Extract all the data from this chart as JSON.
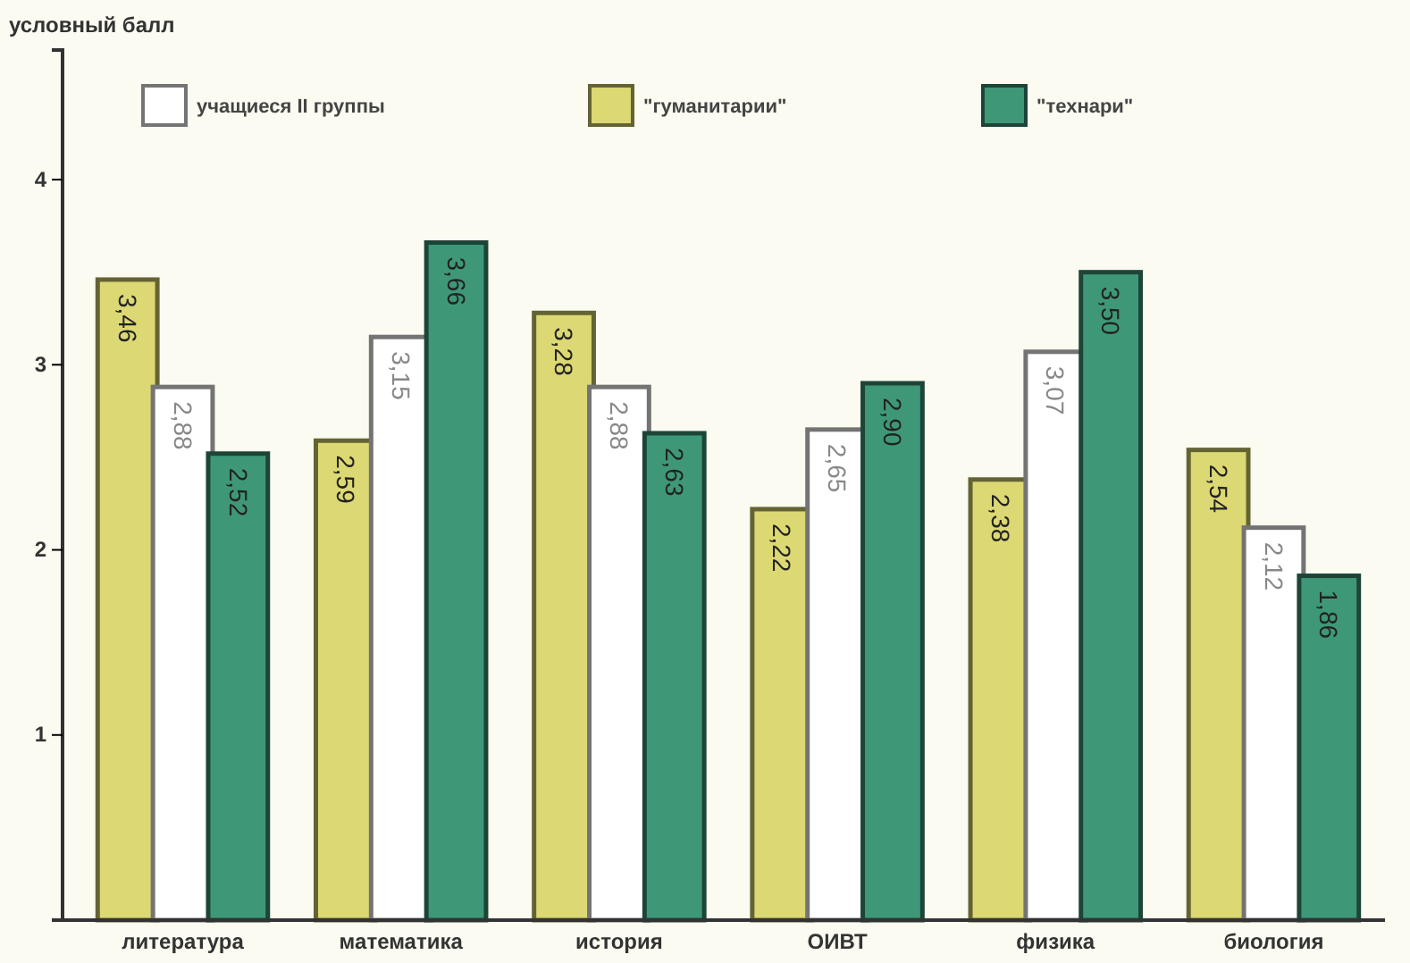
{
  "chart_data": {
    "type": "bar",
    "ylabel": "условный балл",
    "categories": [
      "литература",
      "математика",
      "история",
      "ОИВТ",
      "физика",
      "биология"
    ],
    "series": [
      {
        "name": "\"гуманитарии\"",
        "color": "#dcd873",
        "values": [
          3.46,
          2.59,
          3.28,
          2.22,
          2.38,
          2.54
        ],
        "value_labels": [
          "3,46",
          "2,59",
          "3,28",
          "2,22",
          "2,38",
          "2,54"
        ]
      },
      {
        "name": "учащиеся II группы",
        "color": "#ffffff",
        "values": [
          2.88,
          3.15,
          2.88,
          2.65,
          3.07,
          2.12
        ],
        "value_labels": [
          "2,88",
          "3,15",
          "2,88",
          "2,65",
          "3,07",
          "2,12"
        ]
      },
      {
        "name": "\"технари\"",
        "color": "#3e9878",
        "values": [
          2.52,
          3.66,
          2.63,
          2.9,
          3.5,
          1.86
        ],
        "value_labels": [
          "2,52",
          "3,66",
          "2,63",
          "2,90",
          "3,50",
          "1,86"
        ]
      }
    ],
    "ylim": [
      0,
      4.7
    ],
    "yticks": [
      1,
      2,
      3,
      4
    ],
    "legend": "top",
    "grid": false
  }
}
